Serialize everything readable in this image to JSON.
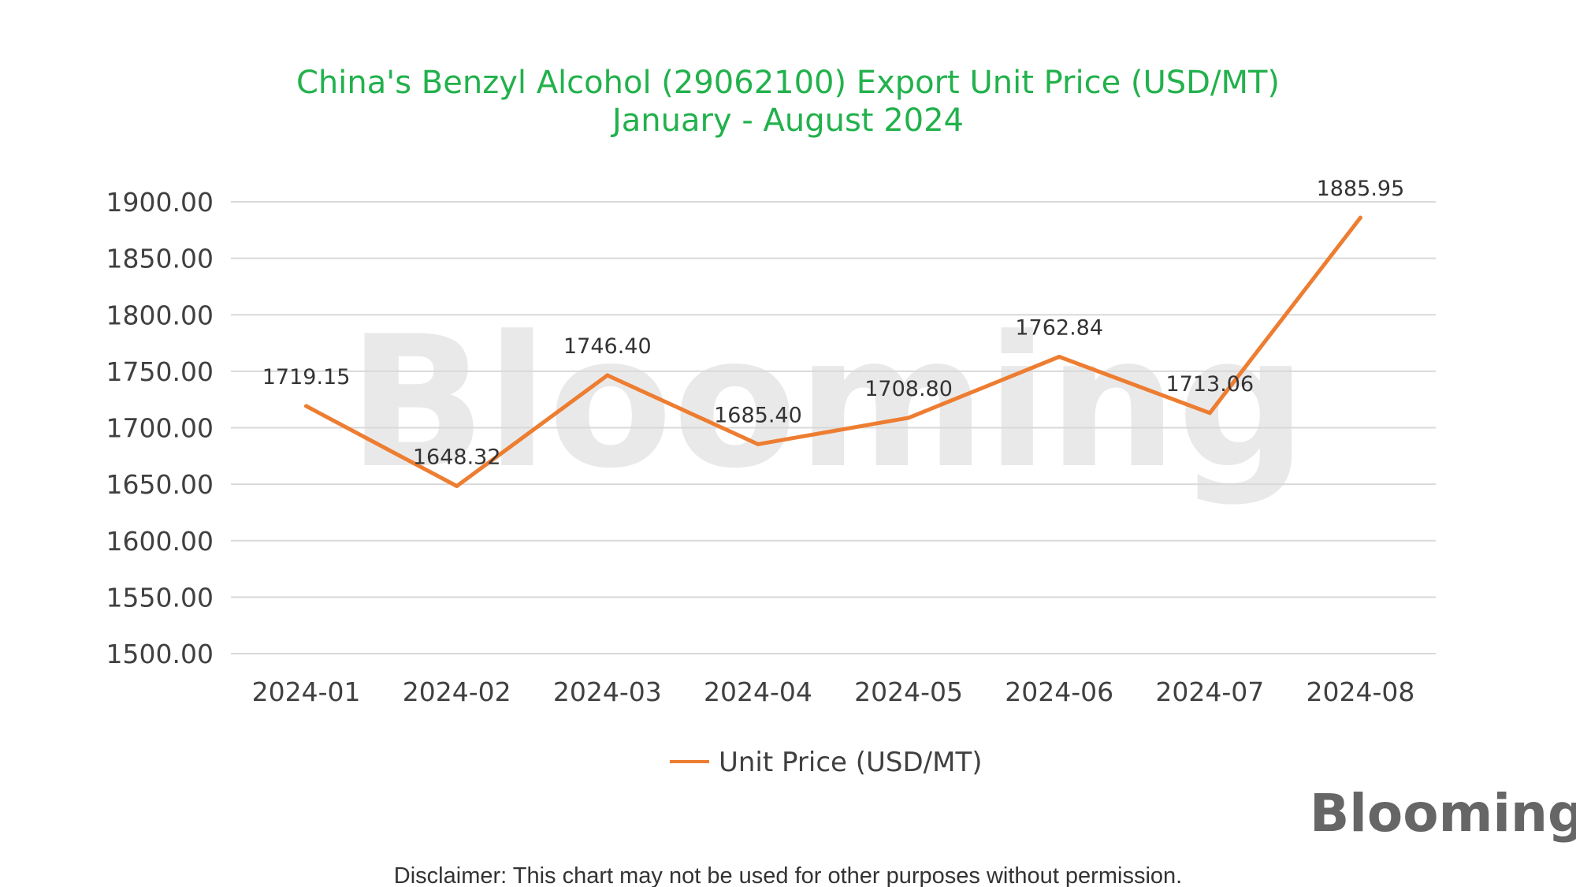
{
  "chart_data": {
    "type": "line",
    "title": "China's Benzyl Alcohol (29062100) Export Unit Price (USD/MT)",
    "subtitle": "January - August 2024",
    "xlabel": "",
    "ylabel": "",
    "categories": [
      "2024-01",
      "2024-02",
      "2024-03",
      "2024-04",
      "2024-05",
      "2024-06",
      "2024-07",
      "2024-08"
    ],
    "series": [
      {
        "name": "Unit Price (USD/MT)",
        "values": [
          1719.15,
          1648.32,
          1746.4,
          1685.4,
          1708.8,
          1762.84,
          1713.06,
          1885.95
        ],
        "labels": [
          "1719.15",
          "1648.32",
          "1746.40",
          "1685.40",
          "1708.80",
          "1762.84",
          "1713.06",
          "1885.95"
        ],
        "color": "#ed7d31"
      }
    ],
    "ylim": [
      1500,
      1900
    ],
    "yticks": [
      "1500.00",
      "1550.00",
      "1600.00",
      "1650.00",
      "1700.00",
      "1750.00",
      "1800.00",
      "1850.00",
      "1900.00"
    ],
    "grid": true,
    "legend_position": "bottom"
  },
  "colors": {
    "title": "#22b14c",
    "grid": "#d9d9d9",
    "line": "#ed7d31"
  },
  "watermark": {
    "text": "Blooming"
  },
  "logo": {
    "text": "Blooming"
  },
  "disclaimer": "Disclaimer: This chart may not be used for other purposes without permission."
}
